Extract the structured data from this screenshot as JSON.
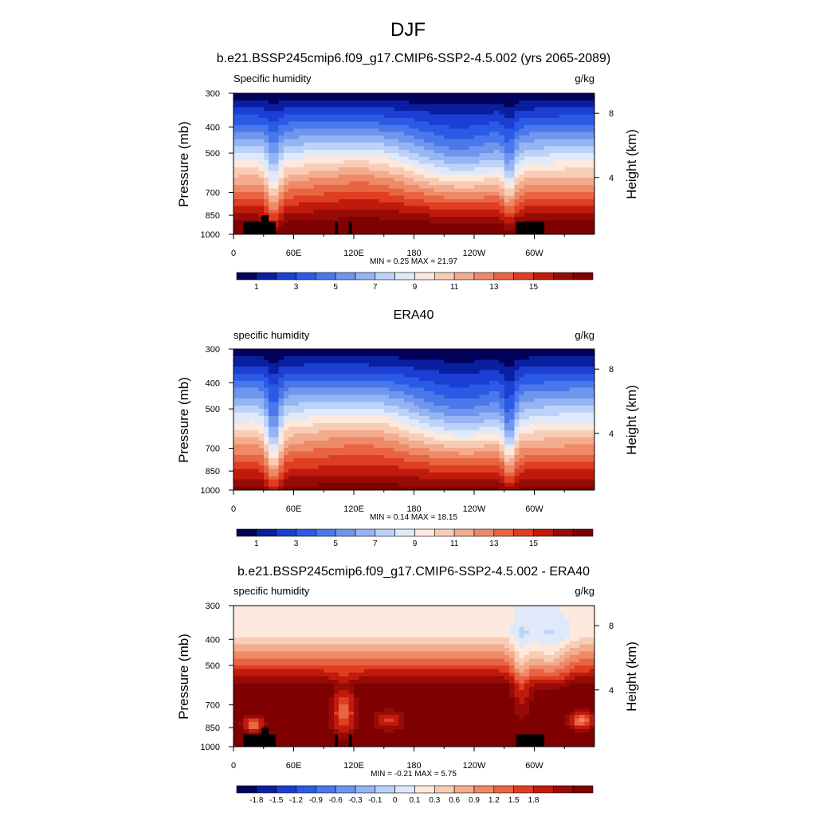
{
  "figure": {
    "title": "DJF"
  },
  "colormaps": {
    "abs": [
      "#02025a",
      "#0a1ea0",
      "#1a3fd2",
      "#2b5ae6",
      "#4a78ea",
      "#6e96ee",
      "#95b4f3",
      "#bcd2f8",
      "#dfe9f9",
      "#fde9dd",
      "#f8cdb6",
      "#f3ac8e",
      "#ee8a68",
      "#e86543",
      "#df3e22",
      "#c01a0d",
      "#960b06",
      "#7f0000"
    ],
    "diff": [
      "#02025a",
      "#0a1ea0",
      "#1a3fd2",
      "#2b5ae6",
      "#4a78ea",
      "#6e96ee",
      "#95b4f3",
      "#bcd2f8",
      "#dfe9f9",
      "#fde9dd",
      "#f8cdb6",
      "#f3ac8e",
      "#ee8a68",
      "#e86543",
      "#df3e22",
      "#c01a0d",
      "#960b06",
      "#7f0000"
    ]
  },
  "chart_data": [
    {
      "type": "heatmap",
      "title": "b.e21.BSSP245cmip6.f09_g17.CMIP6-SSP2-4.5.002 (yrs 2065-2089)",
      "left_string": "Specific humidity",
      "right_string": "g/kg",
      "ylabel": "Pressure (mb)",
      "ylabel_right": "Height (km)",
      "x_ticks": [
        "0",
        "60E",
        "120E",
        "180",
        "120W",
        "60W"
      ],
      "x_tick_values": [
        0,
        60,
        120,
        180,
        240,
        300
      ],
      "xlim": [
        0,
        360
      ],
      "y_ticks": [
        "300",
        "400",
        "500",
        "700",
        "850",
        "1000"
      ],
      "y_tick_values": [
        300,
        400,
        500,
        700,
        850,
        1000
      ],
      "ylim": [
        300,
        1000
      ],
      "y_scale": "log",
      "height_ticks": [
        "8",
        "4"
      ],
      "height_tick_pressures": [
        356,
        616
      ],
      "stats": "MIN =   0.25  MAX =  21.97",
      "colorbar_labels": [
        "1",
        "3",
        "5",
        "7",
        "9",
        "11",
        "13",
        "15"
      ],
      "colorbar_label_boundaries": [
        1,
        3,
        5,
        7,
        9,
        11,
        13,
        15
      ],
      "kind": "model",
      "colormap": "abs",
      "terrain": true
    },
    {
      "type": "heatmap",
      "title": "ERA40",
      "left_string": "specific humidity",
      "right_string": "g/kg",
      "ylabel": "Pressure (mb)",
      "ylabel_right": "Height (km)",
      "x_ticks": [
        "0",
        "60E",
        "120E",
        "180",
        "120W",
        "60W"
      ],
      "x_tick_values": [
        0,
        60,
        120,
        180,
        240,
        300
      ],
      "xlim": [
        0,
        360
      ],
      "y_ticks": [
        "300",
        "400",
        "500",
        "700",
        "850",
        "1000"
      ],
      "y_tick_values": [
        300,
        400,
        500,
        700,
        850,
        1000
      ],
      "ylim": [
        300,
        1000
      ],
      "y_scale": "log",
      "height_ticks": [
        "8",
        "4"
      ],
      "height_tick_pressures": [
        356,
        616
      ],
      "stats": "MIN =   0.14  MAX =  18.15",
      "colorbar_labels": [
        "1",
        "3",
        "5",
        "7",
        "9",
        "11",
        "13",
        "15"
      ],
      "colorbar_label_boundaries": [
        1,
        3,
        5,
        7,
        9,
        11,
        13,
        15
      ],
      "kind": "obs",
      "colormap": "abs",
      "terrain": false
    },
    {
      "type": "heatmap",
      "title": "b.e21.BSSP245cmip6.f09_g17.CMIP6-SSP2-4.5.002 - ERA40",
      "left_string": "specific humidity",
      "right_string": "g/kg",
      "ylabel": "Pressure (mb)",
      "ylabel_right": "Height (km)",
      "x_ticks": [
        "0",
        "60E",
        "120E",
        "180",
        "120W",
        "60W"
      ],
      "x_tick_values": [
        0,
        60,
        120,
        180,
        240,
        300
      ],
      "xlim": [
        0,
        360
      ],
      "y_ticks": [
        "300",
        "400",
        "500",
        "700",
        "850",
        "1000"
      ],
      "y_tick_values": [
        300,
        400,
        500,
        700,
        850,
        1000
      ],
      "ylim": [
        300,
        1000
      ],
      "y_scale": "log",
      "height_ticks": [
        "8",
        "4"
      ],
      "height_tick_pressures": [
        356,
        616
      ],
      "stats": "MIN =  -0.21  MAX =   5.75",
      "colorbar_labels": [
        "-1.8",
        "-1.5",
        "-1.2",
        "-0.9",
        "-0.6",
        "-0.3",
        "-0.1",
        "0",
        "0.1",
        "0.3",
        "0.6",
        "0.9",
        "1.2",
        "1.5",
        "1.8"
      ],
      "colorbar_label_boundaries": [
        1,
        2,
        3,
        4,
        5,
        6,
        7,
        8,
        9,
        10,
        11,
        12,
        13,
        14,
        15
      ],
      "kind": "diff",
      "colormap": "diff",
      "terrain": true
    }
  ]
}
